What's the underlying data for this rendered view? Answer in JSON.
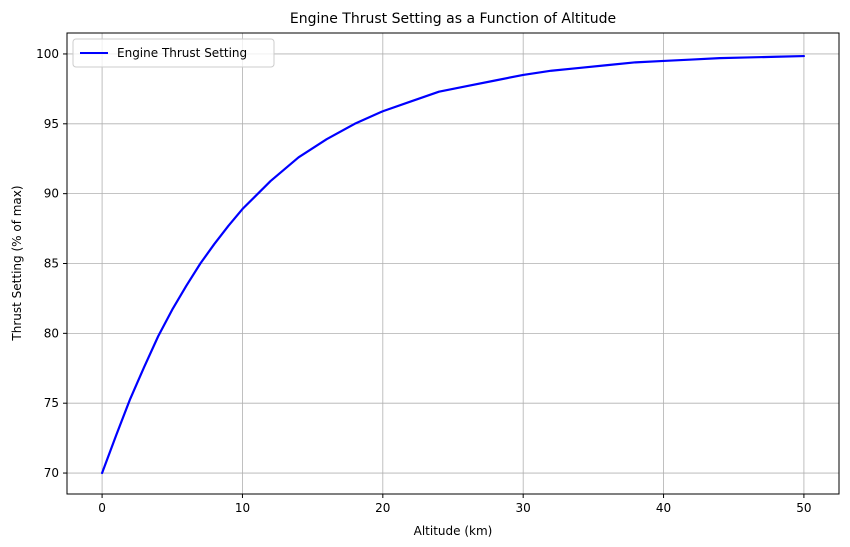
{
  "chart_data": {
    "type": "line",
    "title": "Engine Thrust Setting as a Function of Altitude",
    "xlabel": "Altitude (km)",
    "ylabel": "Thrust Setting (% of max)",
    "xlim": [
      -2.5,
      52.5
    ],
    "ylim": [
      68.5,
      101.5
    ],
    "xticks": [
      0,
      10,
      20,
      30,
      40,
      50
    ],
    "yticks": [
      70,
      75,
      80,
      85,
      90,
      95,
      100
    ],
    "grid": true,
    "legend_position": "upper-left",
    "series": [
      {
        "name": "Engine Thrust Setting",
        "color": "#0000ff",
        "x": [
          0,
          1,
          2,
          3,
          4,
          5,
          6,
          7,
          8,
          9,
          10,
          12,
          14,
          16,
          18,
          20,
          22,
          24,
          26,
          28,
          30,
          32,
          34,
          36,
          38,
          40,
          42,
          44,
          46,
          48,
          50
        ],
        "y": [
          70.0,
          72.7,
          75.3,
          77.6,
          79.8,
          81.7,
          83.4,
          85.0,
          86.4,
          87.7,
          88.9,
          90.9,
          92.6,
          93.9,
          95.0,
          95.9,
          96.6,
          97.3,
          97.7,
          98.1,
          98.5,
          98.8,
          99.0,
          99.2,
          99.4,
          99.5,
          99.6,
          99.7,
          99.75,
          99.8,
          99.85
        ]
      }
    ]
  }
}
